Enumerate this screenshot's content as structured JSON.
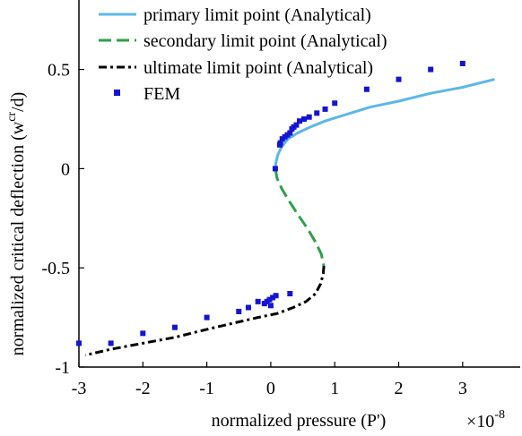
{
  "chart_data": {
    "type": "line",
    "xlabel": "normalized pressure (P')",
    "ylabel": "normalized critical deflection (w",
    "ylabel_sup": "cr",
    "ylabel_tail": "/d)",
    "x_exponent_base": "×10",
    "x_exponent_power": "-8",
    "xlim": [
      -3,
      3.9
    ],
    "ylim": [
      -1,
      0.85
    ],
    "xticks": [
      -3,
      -2,
      -1,
      0,
      1,
      2,
      3
    ],
    "xtick_labels": [
      "-3",
      "-2",
      "-1",
      "0",
      "1",
      "2",
      "3"
    ],
    "yticks": [
      -1,
      -0.5,
      0,
      0.5
    ],
    "ytick_labels": [
      "-1",
      "-0.5",
      "0",
      "0.5"
    ],
    "legend_position": "top",
    "series": [
      {
        "name": "primary limit point (Analytical)",
        "style": "solid",
        "color": "#5bb7e8",
        "x": [
          0.07,
          0.08,
          0.11,
          0.17,
          0.27,
          0.42,
          0.62,
          0.85,
          1.15,
          1.55,
          2.0,
          2.5,
          3.0,
          3.5
        ],
        "y": [
          0.0,
          0.03,
          0.07,
          0.11,
          0.15,
          0.18,
          0.21,
          0.24,
          0.27,
          0.31,
          0.34,
          0.38,
          0.41,
          0.45
        ]
      },
      {
        "name": "secondary limit point (Analytical)",
        "style": "dashed",
        "color": "#2e9f4b",
        "x": [
          0.07,
          0.1,
          0.17,
          0.28,
          0.42,
          0.57,
          0.7,
          0.79,
          0.83
        ],
        "y": [
          0.0,
          -0.05,
          -0.1,
          -0.16,
          -0.23,
          -0.3,
          -0.37,
          -0.43,
          -0.49
        ]
      },
      {
        "name": "ultimate limit point (Analytical)",
        "style": "dashdot",
        "color": "#000000",
        "x": [
          0.83,
          0.82,
          0.78,
          0.7,
          0.55,
          0.35,
          0.1,
          -0.2,
          -0.6,
          -1.0,
          -1.5,
          -2.0,
          -2.5,
          -2.9
        ],
        "y": [
          -0.49,
          -0.53,
          -0.58,
          -0.63,
          -0.67,
          -0.7,
          -0.73,
          -0.75,
          -0.78,
          -0.81,
          -0.85,
          -0.88,
          -0.91,
          -0.94
        ]
      }
    ],
    "markers": {
      "name": "FEM",
      "color": "#1414d2",
      "points": [
        [
          0.07,
          0.0
        ],
        [
          0.14,
          0.12
        ],
        [
          0.15,
          0.13
        ],
        [
          0.18,
          0.15
        ],
        [
          0.22,
          0.16
        ],
        [
          0.26,
          0.17
        ],
        [
          0.3,
          0.18
        ],
        [
          0.33,
          0.2
        ],
        [
          0.36,
          0.21
        ],
        [
          0.4,
          0.22
        ],
        [
          0.45,
          0.24
        ],
        [
          0.52,
          0.25
        ],
        [
          0.6,
          0.26
        ],
        [
          0.72,
          0.28
        ],
        [
          0.85,
          0.3
        ],
        [
          1.0,
          0.33
        ],
        [
          1.5,
          0.4
        ],
        [
          2.0,
          0.45
        ],
        [
          2.5,
          0.5
        ],
        [
          3.0,
          0.53
        ],
        [
          0.3,
          -0.63
        ],
        [
          0.08,
          -0.64
        ],
        [
          0.03,
          -0.65
        ],
        [
          -0.02,
          -0.66
        ],
        [
          -0.06,
          -0.67
        ],
        [
          -0.1,
          -0.68
        ],
        [
          0.0,
          -0.69
        ],
        [
          -0.2,
          -0.67
        ],
        [
          -0.35,
          -0.7
        ],
        [
          -0.5,
          -0.72
        ],
        [
          -1.0,
          -0.75
        ],
        [
          -1.5,
          -0.8
        ],
        [
          -2.0,
          -0.83
        ],
        [
          -2.5,
          -0.88
        ],
        [
          -3.0,
          -0.88
        ]
      ]
    }
  }
}
